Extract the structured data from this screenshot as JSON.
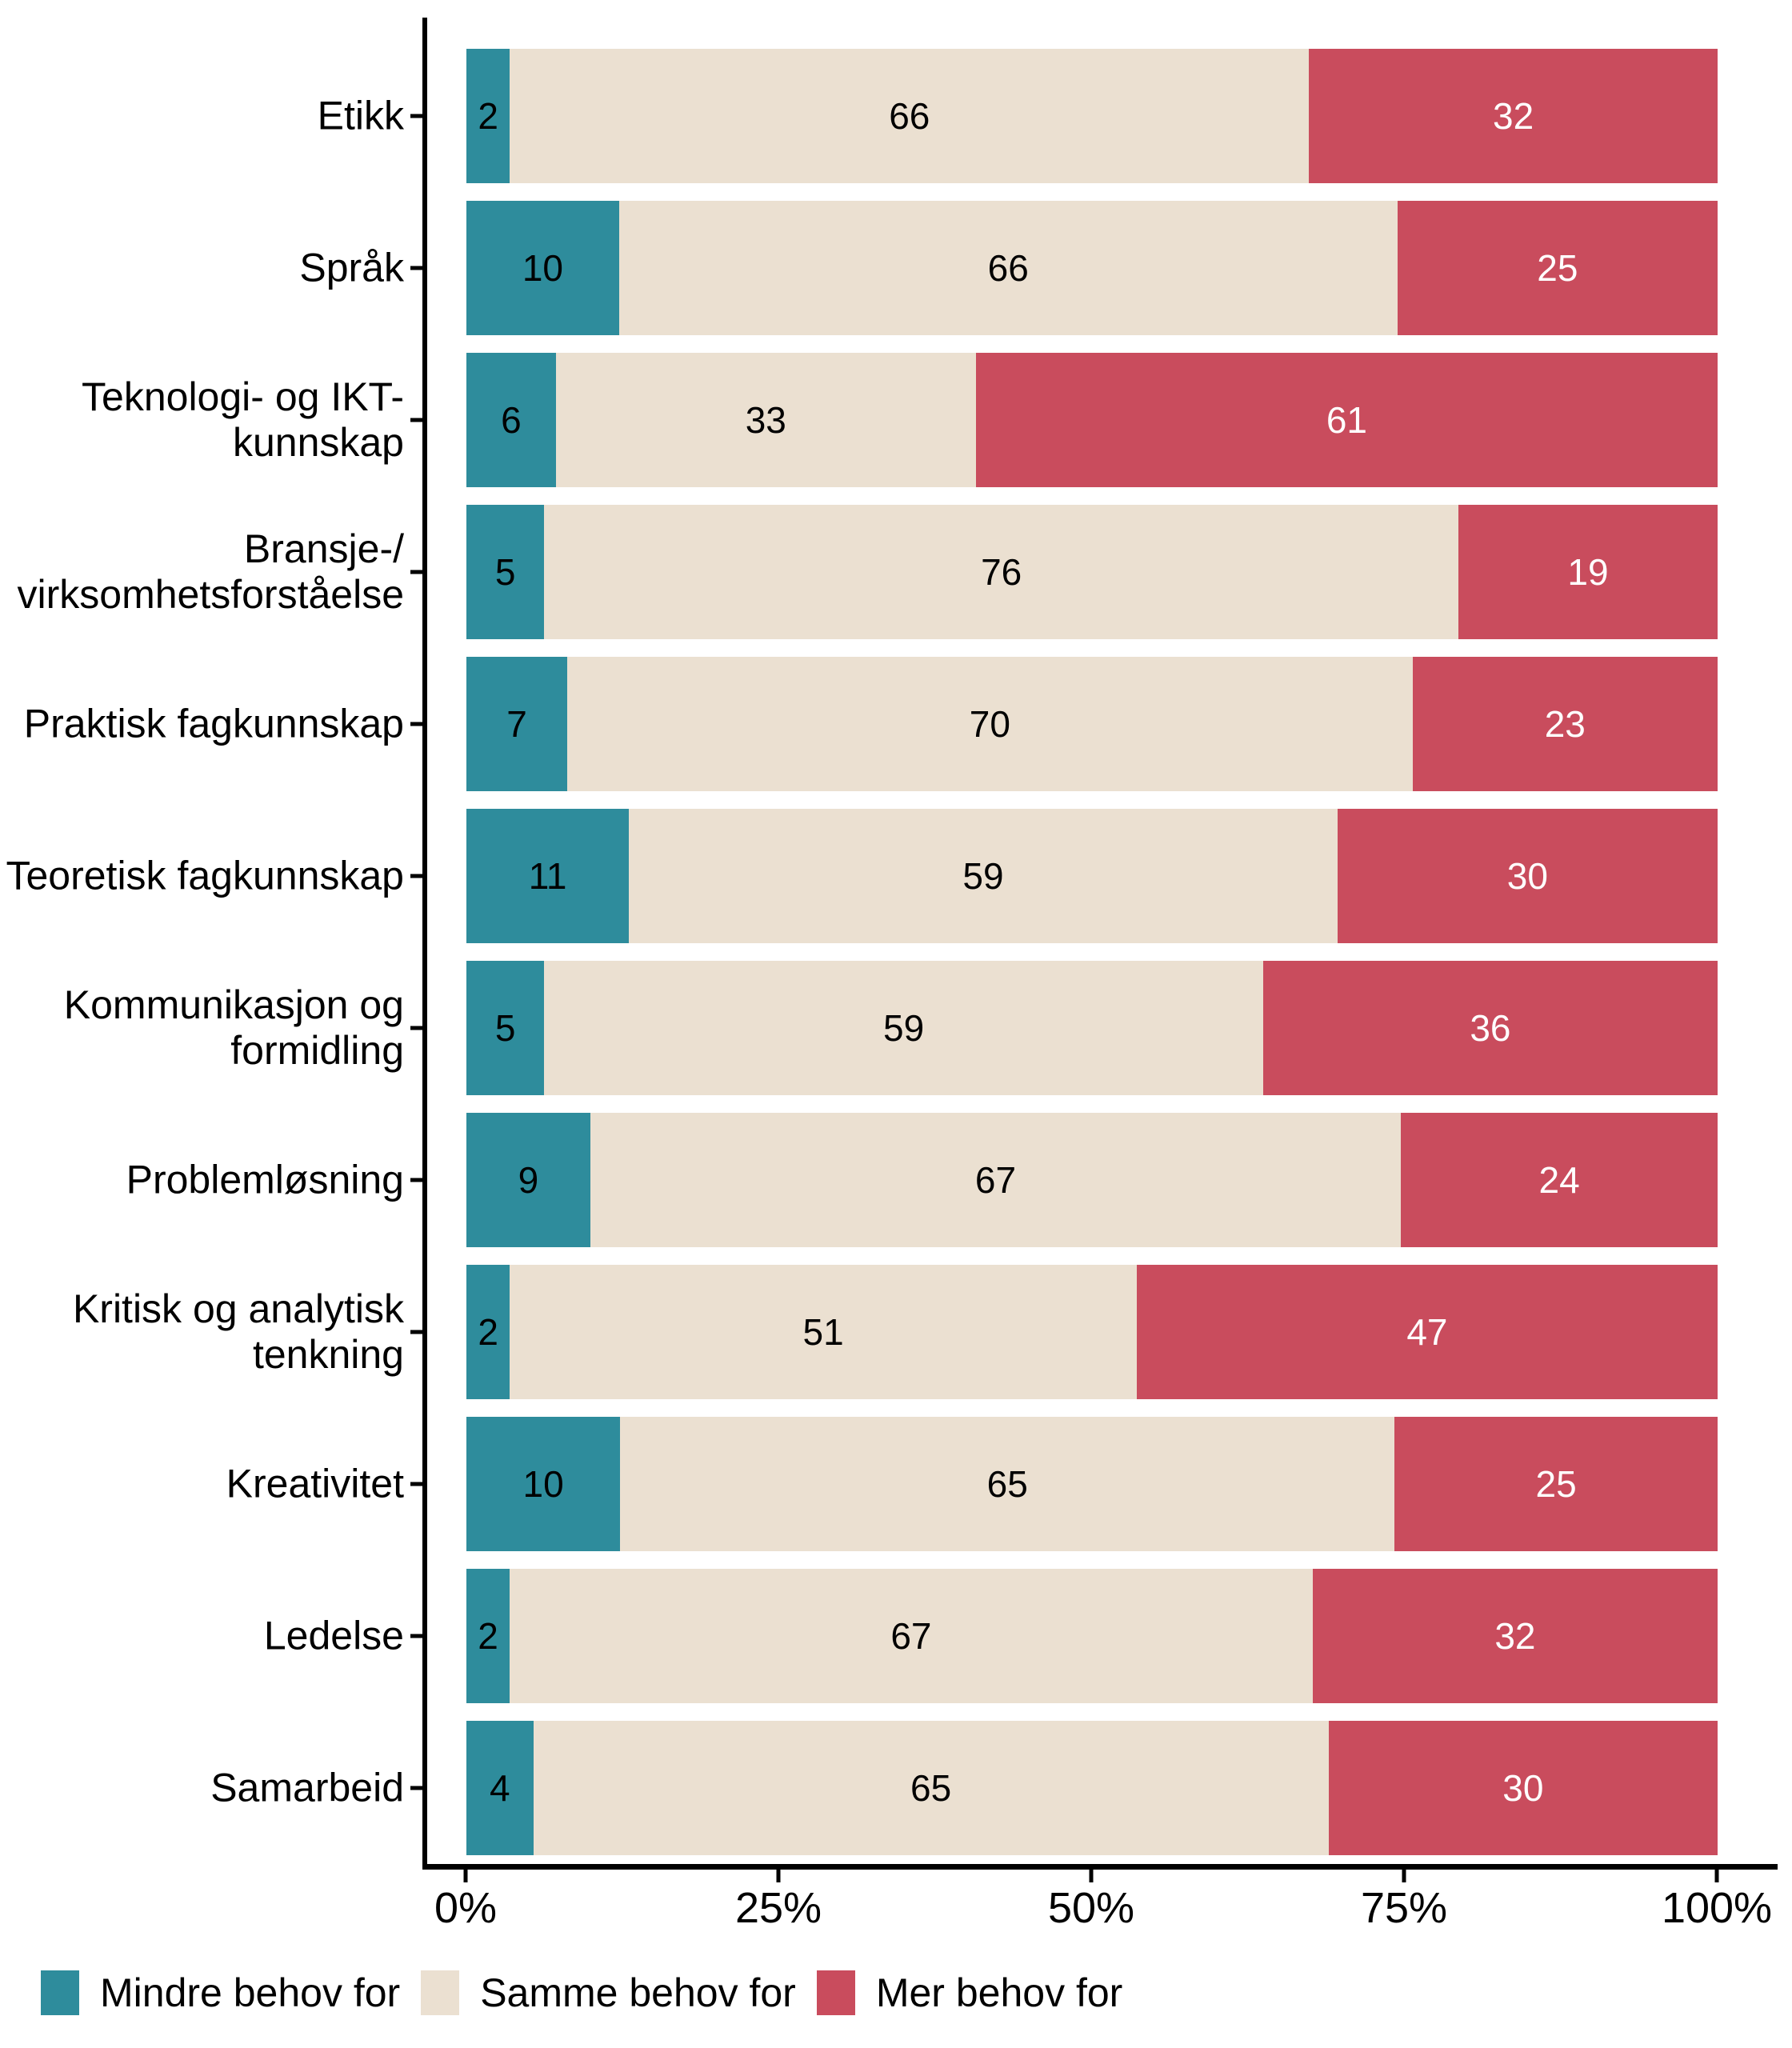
{
  "chart_data": {
    "type": "bar",
    "orientation": "horizontal",
    "stacked": true,
    "unit": "percent",
    "title": "",
    "xlabel": "",
    "ylabel": "",
    "xlim": [
      0,
      100
    ],
    "x_ticks": [
      "0%",
      "25%",
      "50%",
      "75%",
      "100%"
    ],
    "grid": false,
    "legend_position": "bottom-left",
    "background_color": "#FFFFFF",
    "axis_color": "#000000",
    "text_color": "#000000",
    "categories": [
      "Etikk",
      "Språk",
      "Teknologi- og IKT-\nkunnskap",
      "Bransje-/\nvirksomhetsforståelse",
      "Praktisk fagkunnskap",
      "Teoretisk fagkunnskap",
      "Kommunikasjon og\nformidling",
      "Problemløsning",
      "Kritisk og analytisk\ntenkning",
      "Kreativitet",
      "Ledelse",
      "Samarbeid"
    ],
    "series": [
      {
        "name": "Mindre behov for",
        "color": "#2E8C9C",
        "label_color": "#000000",
        "values": [
          2,
          10,
          6,
          5,
          7,
          11,
          5,
          9,
          2,
          10,
          2,
          4
        ]
      },
      {
        "name": "Samme behov for",
        "color": "#EBE0D1",
        "label_color": "#000000",
        "values": [
          66,
          66,
          33,
          76,
          70,
          59,
          59,
          67,
          51,
          65,
          67,
          65
        ]
      },
      {
        "name": "Mer behov for",
        "color": "#C94C5D",
        "label_color": "#FFFFFF",
        "values": [
          32,
          25,
          61,
          19,
          23,
          30,
          36,
          24,
          47,
          25,
          32,
          30
        ]
      }
    ]
  }
}
